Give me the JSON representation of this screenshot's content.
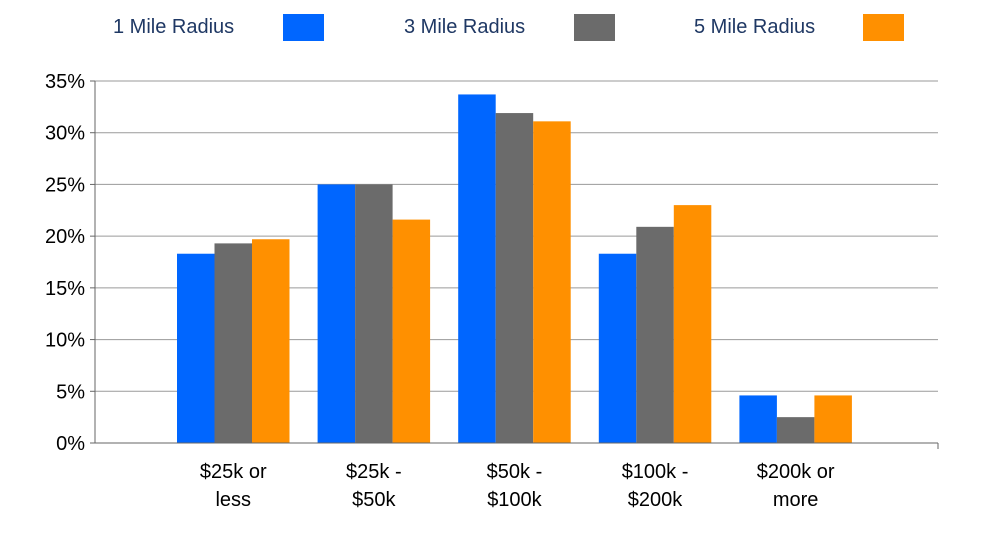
{
  "chart_data": {
    "type": "bar",
    "categories": [
      [
        "$25k or",
        "less"
      ],
      [
        "$25k -",
        "$50k"
      ],
      [
        "$50k -",
        "$100k"
      ],
      [
        "$100k -",
        "$200k"
      ],
      [
        "$200k or",
        "more"
      ]
    ],
    "series": [
      {
        "name": "1 Mile Radius",
        "color": "#0066ff",
        "values": [
          18.3,
          25.0,
          33.7,
          18.3,
          4.6
        ]
      },
      {
        "name": "3 Mile Radius",
        "color": "#6b6b6b",
        "values": [
          19.3,
          25.0,
          31.9,
          20.9,
          2.5
        ]
      },
      {
        "name": "5 Mile Radius",
        "color": "#ff9000",
        "values": [
          19.7,
          21.6,
          31.1,
          23.0,
          4.6
        ]
      }
    ],
    "y_ticks": [
      "0%",
      "5%",
      "10%",
      "15%",
      "20%",
      "25%",
      "30%",
      "35%"
    ],
    "ylim": [
      0,
      35
    ],
    "y_unit": "%",
    "grid": true,
    "legend_position": "top"
  }
}
